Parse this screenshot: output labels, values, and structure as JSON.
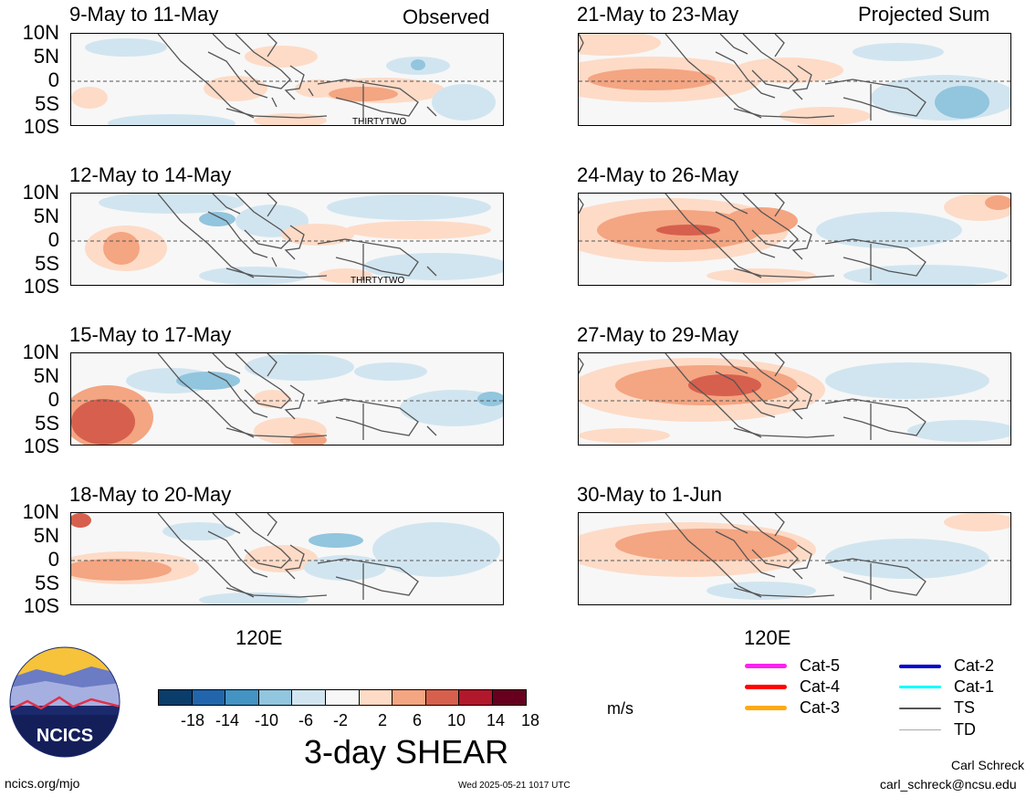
{
  "header": {
    "observed_label": "Observed",
    "projected_label": "Projected Sum"
  },
  "lat_labels": [
    "10N",
    "5N",
    "0",
    "5S",
    "10S"
  ],
  "lon_label": "120E",
  "left_panels": [
    {
      "title": "9-May to 11-May",
      "storm_label": "THIRTYTWO"
    },
    {
      "title": "12-May to 14-May",
      "storm_label": "THIRTYTWO"
    },
    {
      "title": "15-May to 17-May",
      "storm_label": ""
    },
    {
      "title": "18-May to 20-May",
      "storm_label": ""
    }
  ],
  "right_panels": [
    {
      "title": "21-May to 23-May"
    },
    {
      "title": "24-May to 26-May"
    },
    {
      "title": "27-May to 29-May"
    },
    {
      "title": "30-May to 1-Jun"
    }
  ],
  "colorbar": {
    "colors": [
      "#0b3d6b",
      "#2166ac",
      "#4393c3",
      "#92c5de",
      "#d1e5f0",
      "#f7f7f7",
      "#fddbc7",
      "#f4a582",
      "#d6604d",
      "#b2182b",
      "#67001f"
    ],
    "tick_labels": [
      "-18",
      "-14",
      "-10",
      "-6",
      "-2",
      "2",
      "6",
      "10",
      "14",
      "18"
    ],
    "units": "m/s",
    "title": "3-day SHEAR"
  },
  "legend": [
    {
      "label": "Cat-5",
      "color": "#ff22ee"
    },
    {
      "label": "Cat-4",
      "color": "#ff0000"
    },
    {
      "label": "Cat-3",
      "color": "#ffaa11"
    },
    {
      "label": "Cat-2",
      "color": "#0000cc"
    },
    {
      "label": "Cat-1",
      "color": "#00ffff"
    },
    {
      "label": "TS",
      "color": "#555555"
    },
    {
      "label": "TD",
      "color": "#aaaaaa"
    }
  ],
  "logo_text": "NCICS",
  "footer": {
    "url": "ncics.org/mjo",
    "timestamp": "Wed 2025-05-21 1017 UTC",
    "author": "Carl Schreck",
    "email": "carl_schreck@ncsu.edu"
  }
}
